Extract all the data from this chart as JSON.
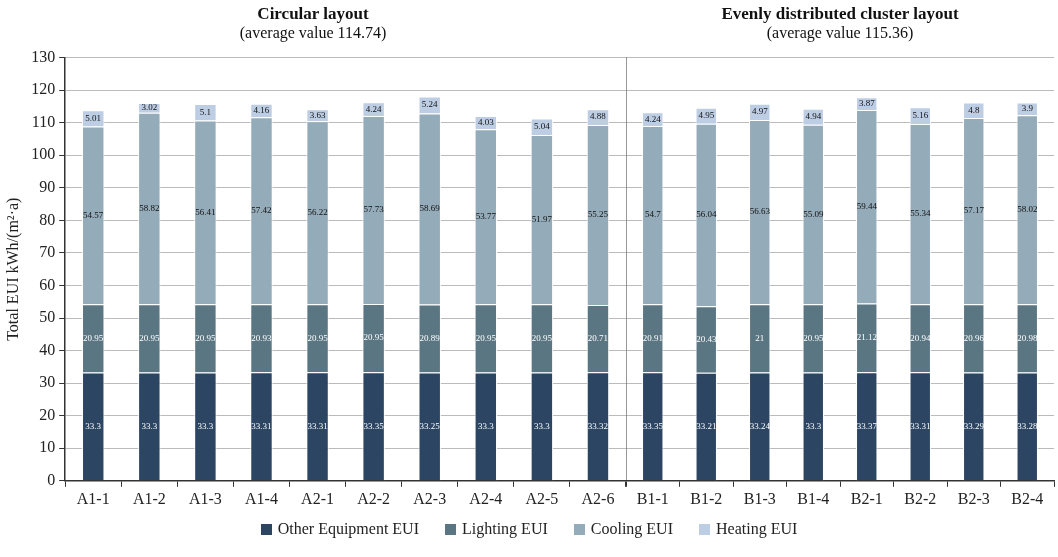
{
  "chart_data": [
    {
      "type": "bar",
      "title": "Circular layout",
      "subtitle": "(average value 114.74)",
      "ylabel": "Total EUI kWh/(m²·a)",
      "categories": [
        "A1-1",
        "A1-2",
        "A1-3",
        "A1-4",
        "A2-1",
        "A2-2",
        "A2-3",
        "A2-4",
        "A2-5",
        "A2-6"
      ],
      "series": [
        {
          "name": "Other Equipment EUI",
          "color": "#2b4562",
          "values": [
            33.3,
            33.3,
            33.3,
            33.31,
            33.31,
            33.35,
            33.25,
            33.3,
            33.3,
            33.32
          ]
        },
        {
          "name": "Lighting EUI",
          "color": "#5b7683",
          "values": [
            20.95,
            20.95,
            20.95,
            20.93,
            20.95,
            20.95,
            20.89,
            20.95,
            20.95,
            20.71
          ]
        },
        {
          "name": "Cooling EUI",
          "color": "#94abb9",
          "values": [
            54.57,
            58.82,
            56.41,
            57.42,
            56.22,
            57.73,
            58.69,
            53.77,
            51.97,
            55.25
          ]
        },
        {
          "name": "Heating EUI",
          "color": "#bccde4",
          "values": [
            5.01,
            3.02,
            5.1,
            4.16,
            3.63,
            4.24,
            5.24,
            4.03,
            5.04,
            4.88
          ]
        }
      ],
      "stacked": true,
      "data_labels": true,
      "ylim": [
        0,
        130
      ],
      "yticks": [
        0,
        10,
        20,
        30,
        40,
        50,
        60,
        70,
        80,
        90,
        100,
        110,
        120,
        130
      ],
      "grid": "y",
      "legend": "bottom"
    },
    {
      "type": "bar",
      "title": "Evenly distributed cluster layout",
      "subtitle": "(average value 115.36)",
      "categories": [
        "B1-1",
        "B1-2",
        "B1-3",
        "B1-4",
        "B2-1",
        "B2-2",
        "B2-3",
        "B2-4"
      ],
      "series": [
        {
          "color": "#2b4562",
          "values": [
            33.35,
            33.21,
            33.24,
            33.3,
            33.37,
            33.31,
            33.29,
            33.28
          ]
        },
        {
          "color": "#5b7683",
          "values": [
            20.91,
            20.43,
            21,
            20.95,
            21.12,
            20.94,
            20.96,
            20.98
          ]
        },
        {
          "color": "#94abb9",
          "values": [
            54.7,
            56.04,
            56.63,
            55.09,
            59.44,
            55.34,
            57.17,
            58.02
          ]
        },
        {
          "color": "#bccde4",
          "values": [
            4.24,
            4.95,
            4.97,
            4.94,
            3.87,
            5.16,
            4.8,
            3.9
          ]
        }
      ],
      "stacked": true,
      "data_labels": true,
      "ylim": [
        0,
        130
      ],
      "yticks": [
        0,
        10,
        20,
        30,
        40,
        50,
        60,
        70,
        80,
        90,
        100,
        110,
        120,
        130
      ],
      "grid": "y",
      "tick_labels": "x"
    }
  ]
}
